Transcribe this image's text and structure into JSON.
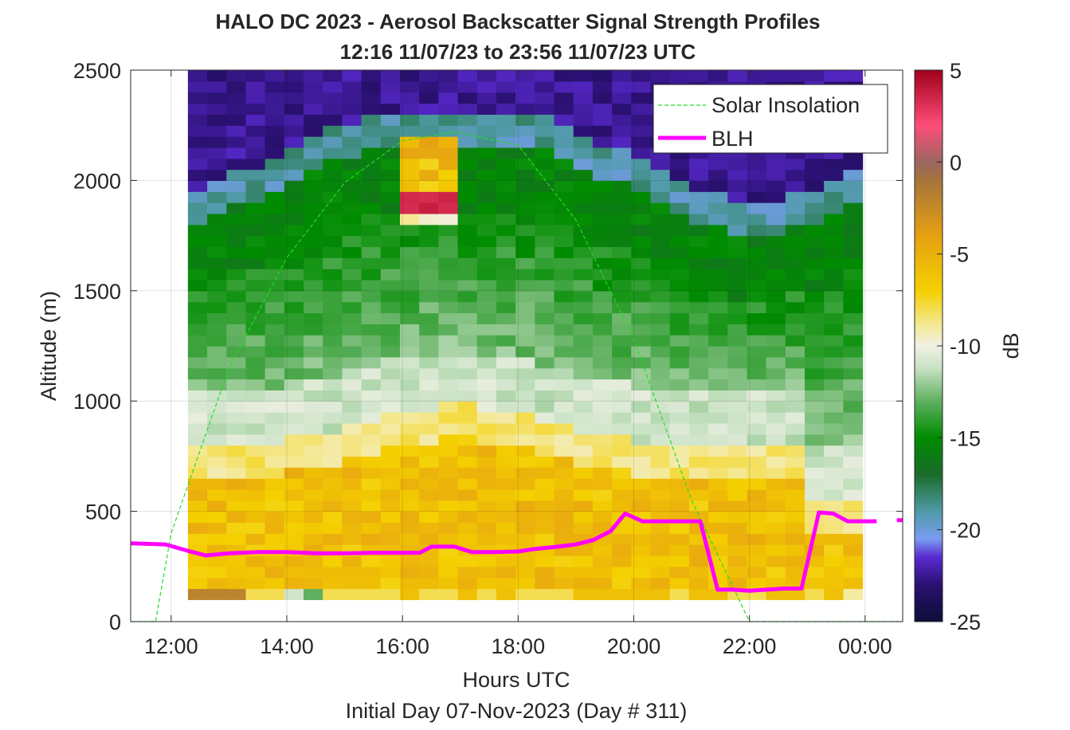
{
  "chart_data": {
    "type": "heatmap",
    "title": "HALO DC 2023 - Aerosol Backscatter Signal Strength Profiles",
    "subtitle": "12:16 11/07/23 to 23:56 11/07/23  UTC",
    "xlabel": "Hours UTC",
    "xlabel2": "Initial Day 07-Nov-2023 (Day # 311)",
    "ylabel": "Altitude (m)",
    "colorbar_label": "dB",
    "xlim_hours": [
      11.3,
      24.65
    ],
    "ylim": [
      0,
      2500
    ],
    "x_ticks": [
      {
        "value": 12,
        "label": "12:00"
      },
      {
        "value": 14,
        "label": "14:00"
      },
      {
        "value": 16,
        "label": "16:00"
      },
      {
        "value": 18,
        "label": "18:00"
      },
      {
        "value": 20,
        "label": "20:00"
      },
      {
        "value": 22,
        "label": "22:00"
      },
      {
        "value": 24,
        "label": "00:00"
      }
    ],
    "y_ticks": [
      "0",
      "500",
      "1000",
      "1500",
      "2000",
      "2500"
    ],
    "colorbar_ticks": [
      "5",
      "0",
      "-5",
      "-10",
      "-15",
      "-20",
      "-25"
    ],
    "clim": [
      -25,
      5
    ],
    "grid": true,
    "legend_position": "top-right",
    "legend": [
      {
        "name": "Solar Insolation",
        "style": "dashed",
        "color": "#22dd22"
      },
      {
        "name": "BLH",
        "style": "solid",
        "color": "#ff00ff"
      }
    ],
    "colormap": [
      {
        "v": -25,
        "c": "#0d0d38"
      },
      {
        "v": -23,
        "c": "#2a1070"
      },
      {
        "v": -21.5,
        "c": "#5a2ad0"
      },
      {
        "v": -20.5,
        "c": "#7a9cf2"
      },
      {
        "v": -19,
        "c": "#4f9aa6"
      },
      {
        "v": -17,
        "c": "#1a6b2a"
      },
      {
        "v": -15,
        "c": "#008c00"
      },
      {
        "v": -13,
        "c": "#5fb05f"
      },
      {
        "v": -11.2,
        "c": "#c8e2c4"
      },
      {
        "v": -10,
        "c": "#f0f0e4"
      },
      {
        "v": -9,
        "c": "#f4eaa0"
      },
      {
        "v": -7,
        "c": "#f4d000"
      },
      {
        "v": -4,
        "c": "#e6a012"
      },
      {
        "v": -1,
        "c": "#a6743a"
      },
      {
        "v": 0,
        "c": "#9a6660"
      },
      {
        "v": 2,
        "c": "#ff4d7a"
      },
      {
        "v": 5,
        "c": "#a0001a"
      }
    ],
    "heatmap": {
      "x_start_hour": 12.29,
      "x_step_hours": 0.3333,
      "columns": 35,
      "row_edges_m": [
        100,
        150,
        200,
        250,
        300,
        350,
        400,
        450,
        500,
        550,
        600,
        650,
        700,
        750,
        800,
        850,
        900,
        950,
        1000,
        1050,
        1100,
        1150,
        1200,
        1250,
        1300,
        1350,
        1400,
        1450,
        1500,
        1550,
        1600,
        1650,
        1700,
        1750,
        1800,
        1850,
        1900,
        1950,
        2000,
        2050,
        2100,
        2150,
        2200,
        2250,
        2300,
        2350,
        2400,
        2450,
        2500
      ],
      "bottom_row_values": [
        -2,
        -2,
        -2,
        -8,
        -8,
        -11,
        -13,
        -8,
        -8,
        -8,
        -8,
        -6,
        -8,
        -8,
        -6,
        -8,
        -6,
        -8,
        -8,
        -8,
        -6,
        -6,
        -6,
        -6,
        -6,
        -8,
        -6,
        -6,
        -8,
        -8,
        -6,
        -6,
        -8,
        -6,
        -9
      ],
      "blank_above_m": [
        2500,
        2500,
        2500,
        2500,
        2500,
        2500,
        2500,
        2500,
        2500,
        2500,
        2500,
        2500,
        2500,
        2500,
        2500,
        2500,
        2500,
        2500,
        2500,
        2500,
        2500,
        2500,
        2500,
        2500,
        2500,
        2500,
        2500,
        2500,
        2500,
        2500,
        2500,
        2500,
        2500,
        2500,
        2500
      ],
      "cloud_patch": {
        "x_from": 16.0,
        "x_to": 16.9,
        "y_from": 1800,
        "y_to": 2200
      }
    },
    "series": [
      {
        "name": "BLH",
        "x": [
          11.3,
          11.9,
          12.3,
          12.6,
          13.0,
          13.5,
          14.0,
          14.5,
          15.0,
          15.5,
          16.0,
          16.3,
          16.5,
          16.9,
          17.2,
          17.6,
          18.0,
          18.3,
          18.7,
          19.0,
          19.3,
          19.6,
          19.85,
          20.15,
          20.5,
          20.8,
          21.15,
          21.45,
          21.7,
          22.0,
          22.3,
          22.6,
          22.9,
          23.2,
          23.45,
          23.7,
          23.95,
          24.2
        ],
        "y": [
          355,
          350,
          320,
          300,
          310,
          315,
          315,
          310,
          310,
          312,
          312,
          312,
          340,
          340,
          315,
          315,
          318,
          330,
          340,
          350,
          370,
          410,
          490,
          455,
          455,
          455,
          455,
          145,
          145,
          140,
          145,
          150,
          150,
          495,
          490,
          455,
          455,
          455
        ]
      },
      {
        "name": "BLH-end",
        "x": [
          24.55,
          24.65
        ],
        "y": [
          460,
          460
        ]
      },
      {
        "name": "Solar Insolation",
        "x": [
          11.3,
          11.73,
          12.0,
          13.0,
          14.0,
          15.0,
          16.0,
          16.9,
          18.0,
          19.0,
          20.0,
          21.0,
          22.0,
          22.05,
          24.65
        ],
        "y": [
          0,
          0,
          400,
          1150,
          1650,
          1990,
          2180,
          2220,
          2160,
          1820,
          1280,
          550,
          0,
          0,
          0
        ]
      }
    ]
  }
}
